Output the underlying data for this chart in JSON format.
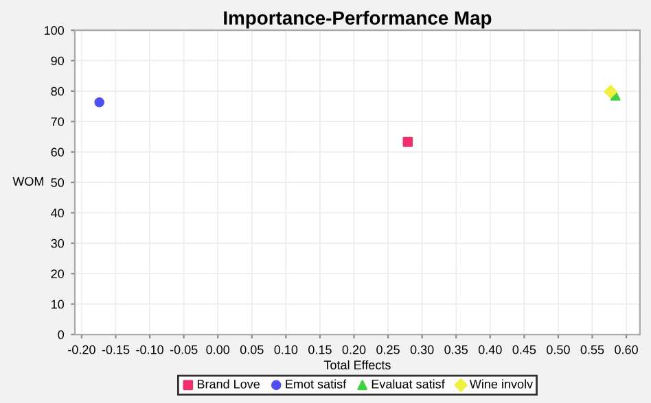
{
  "chart_data": {
    "type": "scatter",
    "title": "Importance-Performance Map",
    "xlabel": "Total Effects",
    "ylabel": "WOM",
    "series": [
      {
        "name": "Brand Love",
        "color": "#f0306a",
        "marker": "square",
        "x": [
          0.279
        ],
        "values": [
          63.3
        ]
      },
      {
        "name": "Emot satisf",
        "color": "#5050f0",
        "marker": "circle",
        "x": [
          -0.174
        ],
        "values": [
          76.3
        ]
      },
      {
        "name": "Evaluat satisf",
        "color": "#40d040",
        "marker": "triangle",
        "x": [
          0.584
        ],
        "values": [
          78.5
        ]
      },
      {
        "name": "Wine involv",
        "color": "#f0f040",
        "marker": "diamond",
        "x": [
          0.577
        ],
        "values": [
          79.8
        ]
      }
    ],
    "xlim": [
      -0.21,
      0.62
    ],
    "xticks": [
      {
        "value": -0.2,
        "label": "-0.20"
      },
      {
        "value": -0.15,
        "label": "-0.15"
      },
      {
        "value": -0.1,
        "label": "-0.10"
      },
      {
        "value": -0.05,
        "label": "-0.05"
      },
      {
        "value": 0,
        "label": "0.00"
      },
      {
        "value": 0.05,
        "label": "0.05"
      },
      {
        "value": 0.1,
        "label": "0.10"
      },
      {
        "value": 0.15,
        "label": "0.15"
      },
      {
        "value": 0.2,
        "label": "0.20"
      },
      {
        "value": 0.25,
        "label": "0.25"
      },
      {
        "value": 0.3,
        "label": "0.30"
      },
      {
        "value": 0.35,
        "label": "0.35"
      },
      {
        "value": 0.4,
        "label": "0.40"
      },
      {
        "value": 0.45,
        "label": "0.45"
      },
      {
        "value": 0.5,
        "label": "0.50"
      },
      {
        "value": 0.55,
        "label": "0.55"
      },
      {
        "value": 0.6,
        "label": "0.60"
      }
    ],
    "ylim": [
      0,
      100
    ],
    "yticks": [
      0,
      10,
      20,
      30,
      40,
      50,
      60,
      70,
      80,
      90,
      100
    ],
    "grid": true,
    "legend": "bottom"
  }
}
